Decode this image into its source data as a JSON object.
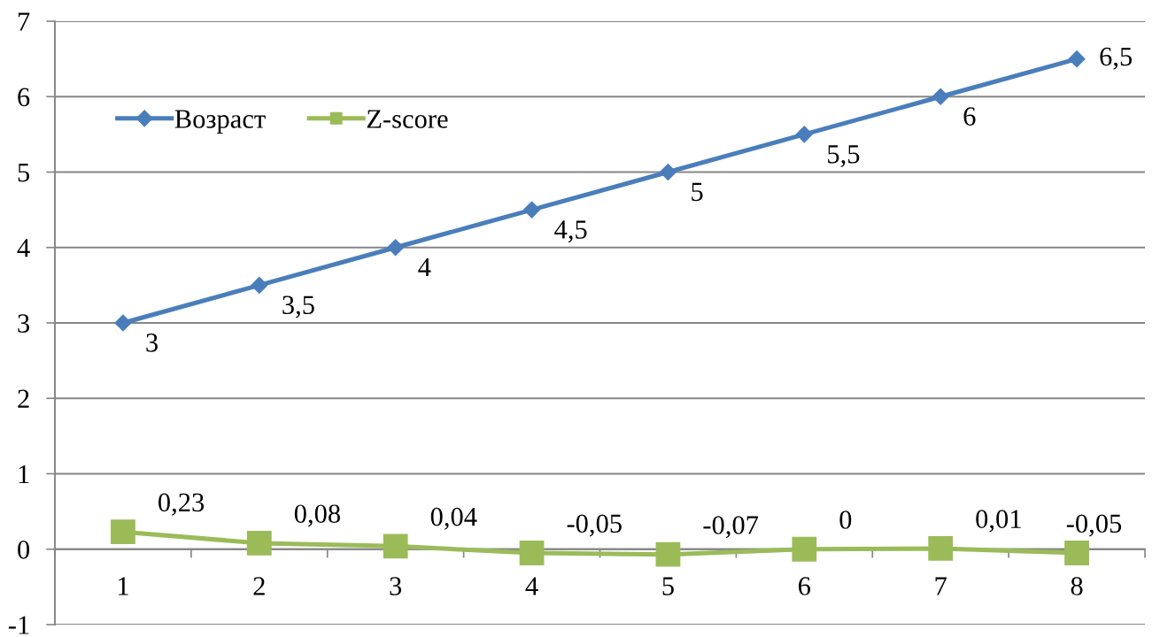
{
  "chart_data": {
    "type": "line",
    "categories": [
      "1",
      "2",
      "3",
      "4",
      "5",
      "6",
      "7",
      "8"
    ],
    "series": [
      {
        "name": "Возраст",
        "color": "#4a7ebb",
        "marker": "diamond",
        "values": [
          3,
          3.5,
          4,
          4.5,
          5,
          5.5,
          6,
          6.5
        ],
        "value_labels": [
          "3",
          "3,5",
          "4",
          "4,5",
          "5",
          "5,5",
          "6",
          "6,5"
        ]
      },
      {
        "name": "Z-score",
        "color": "#9bbb59",
        "marker": "square",
        "values": [
          0.23,
          0.08,
          0.04,
          -0.05,
          -0.07,
          0,
          0.01,
          -0.05
        ],
        "value_labels": [
          "0,23",
          "0,08",
          "0,04",
          "-0,05",
          "-0,07",
          "0",
          "0,01",
          "-0,05"
        ]
      }
    ],
    "ylim": [
      -1,
      7
    ],
    "yticks": [
      -1,
      0,
      1,
      2,
      3,
      4,
      5,
      6,
      7
    ],
    "grid": "y",
    "legend": "top left",
    "line_style": "solid"
  }
}
